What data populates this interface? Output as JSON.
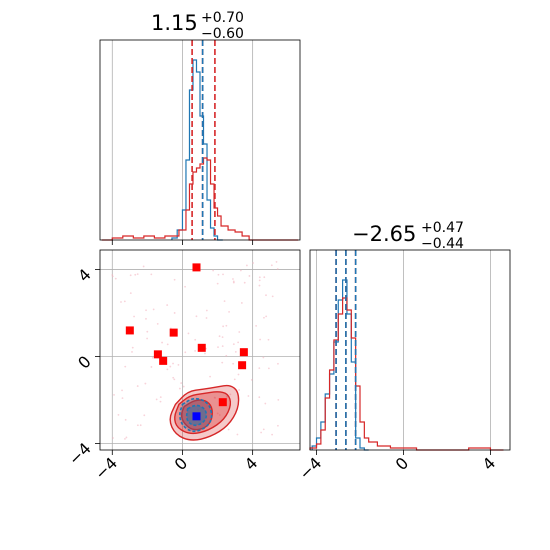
{
  "chart_data": {
    "type": "corner",
    "grid": true,
    "colors": {
      "blue": "#1f77b4",
      "red": "#d62728",
      "marker_red": "#ff0000",
      "marker_blue": "#0000ff",
      "grid": "#b0b0b0",
      "scatter": "#f4b6c2"
    },
    "panels": [
      {
        "id": "marginal-x",
        "type": "histogram",
        "title": {
          "median": "1.15",
          "plus": "+0.70",
          "minus": "−0.60"
        },
        "xlim": [
          -4.7,
          6.7
        ],
        "x_ticks": [
          -4,
          0,
          4
        ],
        "quantile_lines": {
          "blue": [
            1.15
          ],
          "red": [
            0.55,
            1.15,
            1.85
          ]
        },
        "series": [
          {
            "name": "",
            "color": "blue",
            "bin_edges": [
              -0.6,
              -0.3,
              0.0,
              0.2,
              0.4,
              0.6,
              0.8,
              1.0,
              1.2,
              1.4,
              1.6,
              1.8,
              2.0,
              2.3
            ],
            "counts": [
              0.01,
              0.05,
              0.15,
              0.4,
              0.75,
              0.9,
              0.84,
              0.62,
              0.48,
              0.2,
              0.06,
              0.02,
              0.0
            ]
          },
          {
            "name": "",
            "color": "red",
            "bin_edges": [
              -4.6,
              -4.0,
              -3.4,
              -2.8,
              -2.2,
              -1.6,
              -1.0,
              -0.6,
              -0.2,
              0.2,
              0.4,
              0.6,
              0.8,
              1.0,
              1.2,
              1.4,
              1.6,
              1.8,
              2.0,
              2.2,
              2.6,
              3.0,
              3.4,
              3.8,
              4.2,
              6.6
            ],
            "counts": [
              0.0,
              0.01,
              0.02,
              0.01,
              0.02,
              0.01,
              0.02,
              0.02,
              0.05,
              0.15,
              0.28,
              0.34,
              0.36,
              0.38,
              0.41,
              0.4,
              0.28,
              0.16,
              0.12,
              0.07,
              0.05,
              0.04,
              0.02,
              0.0,
              0.0
            ]
          }
        ]
      },
      {
        "id": "joint",
        "type": "contour-scatter",
        "xlim": [
          -4.7,
          6.7
        ],
        "ylim": [
          -4.3,
          4.9
        ],
        "x_ticks": [
          -4,
          0,
          4
        ],
        "y_ticks": [
          -4,
          0,
          4
        ],
        "red_markers": [
          [
            0.8,
            4.1
          ],
          [
            -3.0,
            1.2
          ],
          [
            -0.5,
            1.1
          ],
          [
            -1.4,
            0.1
          ],
          [
            -1.1,
            -0.2
          ],
          [
            1.1,
            0.4
          ],
          [
            3.5,
            0.2
          ],
          [
            3.4,
            -0.4
          ],
          [
            2.3,
            -2.1
          ]
        ],
        "blue_marker": [
          0.8,
          -2.75
        ],
        "contours": {
          "center": [
            1.0,
            -2.65
          ],
          "red_levels": [
            [
              [
                -0.4,
                -2.2
              ],
              [
                0.3,
                -1.6
              ],
              [
                1.2,
                -1.5
              ],
              [
                2.0,
                -1.4
              ],
              [
                2.7,
                -1.3
              ],
              [
                3.2,
                -1.6
              ],
              [
                3.2,
                -2.4
              ],
              [
                2.6,
                -3.2
              ],
              [
                1.6,
                -3.7
              ],
              [
                0.5,
                -3.9
              ],
              [
                -0.4,
                -3.6
              ],
              [
                -0.8,
                -2.9
              ]
            ],
            [
              [
                -0.2,
                -2.2
              ],
              [
                0.4,
                -1.8
              ],
              [
                1.2,
                -1.7
              ],
              [
                2.0,
                -1.6
              ],
              [
                2.6,
                -1.7
              ],
              [
                2.8,
                -2.2
              ],
              [
                2.4,
                -2.9
              ],
              [
                1.5,
                -3.4
              ],
              [
                0.5,
                -3.6
              ],
              [
                -0.3,
                -3.3
              ],
              [
                -0.5,
                -2.8
              ]
            ],
            [
              [
                0.1,
                -2.3
              ],
              [
                0.7,
                -2.0
              ],
              [
                1.3,
                -2.0
              ],
              [
                1.7,
                -2.3
              ],
              [
                1.7,
                -2.9
              ],
              [
                1.3,
                -3.3
              ],
              [
                0.6,
                -3.4
              ],
              [
                0.1,
                -3.1
              ],
              [
                -0.1,
                -2.7
              ]
            ]
          ],
          "blue_levels": [
            [
              [
                0.0,
                -2.2
              ],
              [
                0.6,
                -1.9
              ],
              [
                1.2,
                -2.0
              ],
              [
                1.6,
                -2.3
              ],
              [
                1.7,
                -2.9
              ],
              [
                1.3,
                -3.3
              ],
              [
                0.6,
                -3.5
              ],
              [
                0.0,
                -3.2
              ],
              [
                -0.2,
                -2.7
              ]
            ],
            [
              [
                0.3,
                -2.4
              ],
              [
                0.8,
                -2.2
              ],
              [
                1.3,
                -2.4
              ],
              [
                1.4,
                -2.8
              ],
              [
                1.1,
                -3.1
              ],
              [
                0.6,
                -3.2
              ],
              [
                0.2,
                -2.9
              ]
            ]
          ]
        },
        "scatter_seed": 7
      },
      {
        "id": "marginal-y",
        "type": "histogram",
        "title": {
          "median": "−2.65",
          "plus": "+0.47",
          "minus": "−0.44"
        },
        "xlim": [
          -4.3,
          4.9
        ],
        "x_ticks": [
          -4,
          0,
          4
        ],
        "quantile_lines": {
          "blue": [
            -3.1,
            -2.65,
            -2.2
          ],
          "red": [
            -3.1,
            -2.65,
            -2.2
          ]
        },
        "series": [
          {
            "name": "",
            "color": "blue",
            "bin_edges": [
              -4.2,
              -4.0,
              -3.8,
              -3.6,
              -3.4,
              -3.2,
              -3.0,
              -2.8,
              -2.6,
              -2.4,
              -2.2,
              -2.0,
              -1.8,
              -1.6
            ],
            "counts": [
              0.02,
              0.06,
              0.14,
              0.28,
              0.38,
              0.54,
              0.75,
              0.85,
              0.68,
              0.44,
              0.06,
              0.01,
              0.0
            ]
          },
          {
            "name": "",
            "color": "red",
            "bin_edges": [
              -4.3,
              -4.0,
              -3.8,
              -3.6,
              -3.4,
              -3.2,
              -3.0,
              -2.8,
              -2.6,
              -2.4,
              -2.2,
              -2.0,
              -1.8,
              -1.6,
              -1.2,
              -0.6,
              0.6,
              1.4,
              2.2,
              3.0,
              4.0,
              4.6
            ],
            "counts": [
              0.01,
              0.03,
              0.1,
              0.26,
              0.4,
              0.55,
              0.68,
              0.76,
              0.7,
              0.56,
              0.32,
              0.14,
              0.06,
              0.04,
              0.02,
              0.01,
              0.0,
              0.0,
              0.0,
              0.01,
              0.0
            ]
          }
        ]
      }
    ]
  }
}
